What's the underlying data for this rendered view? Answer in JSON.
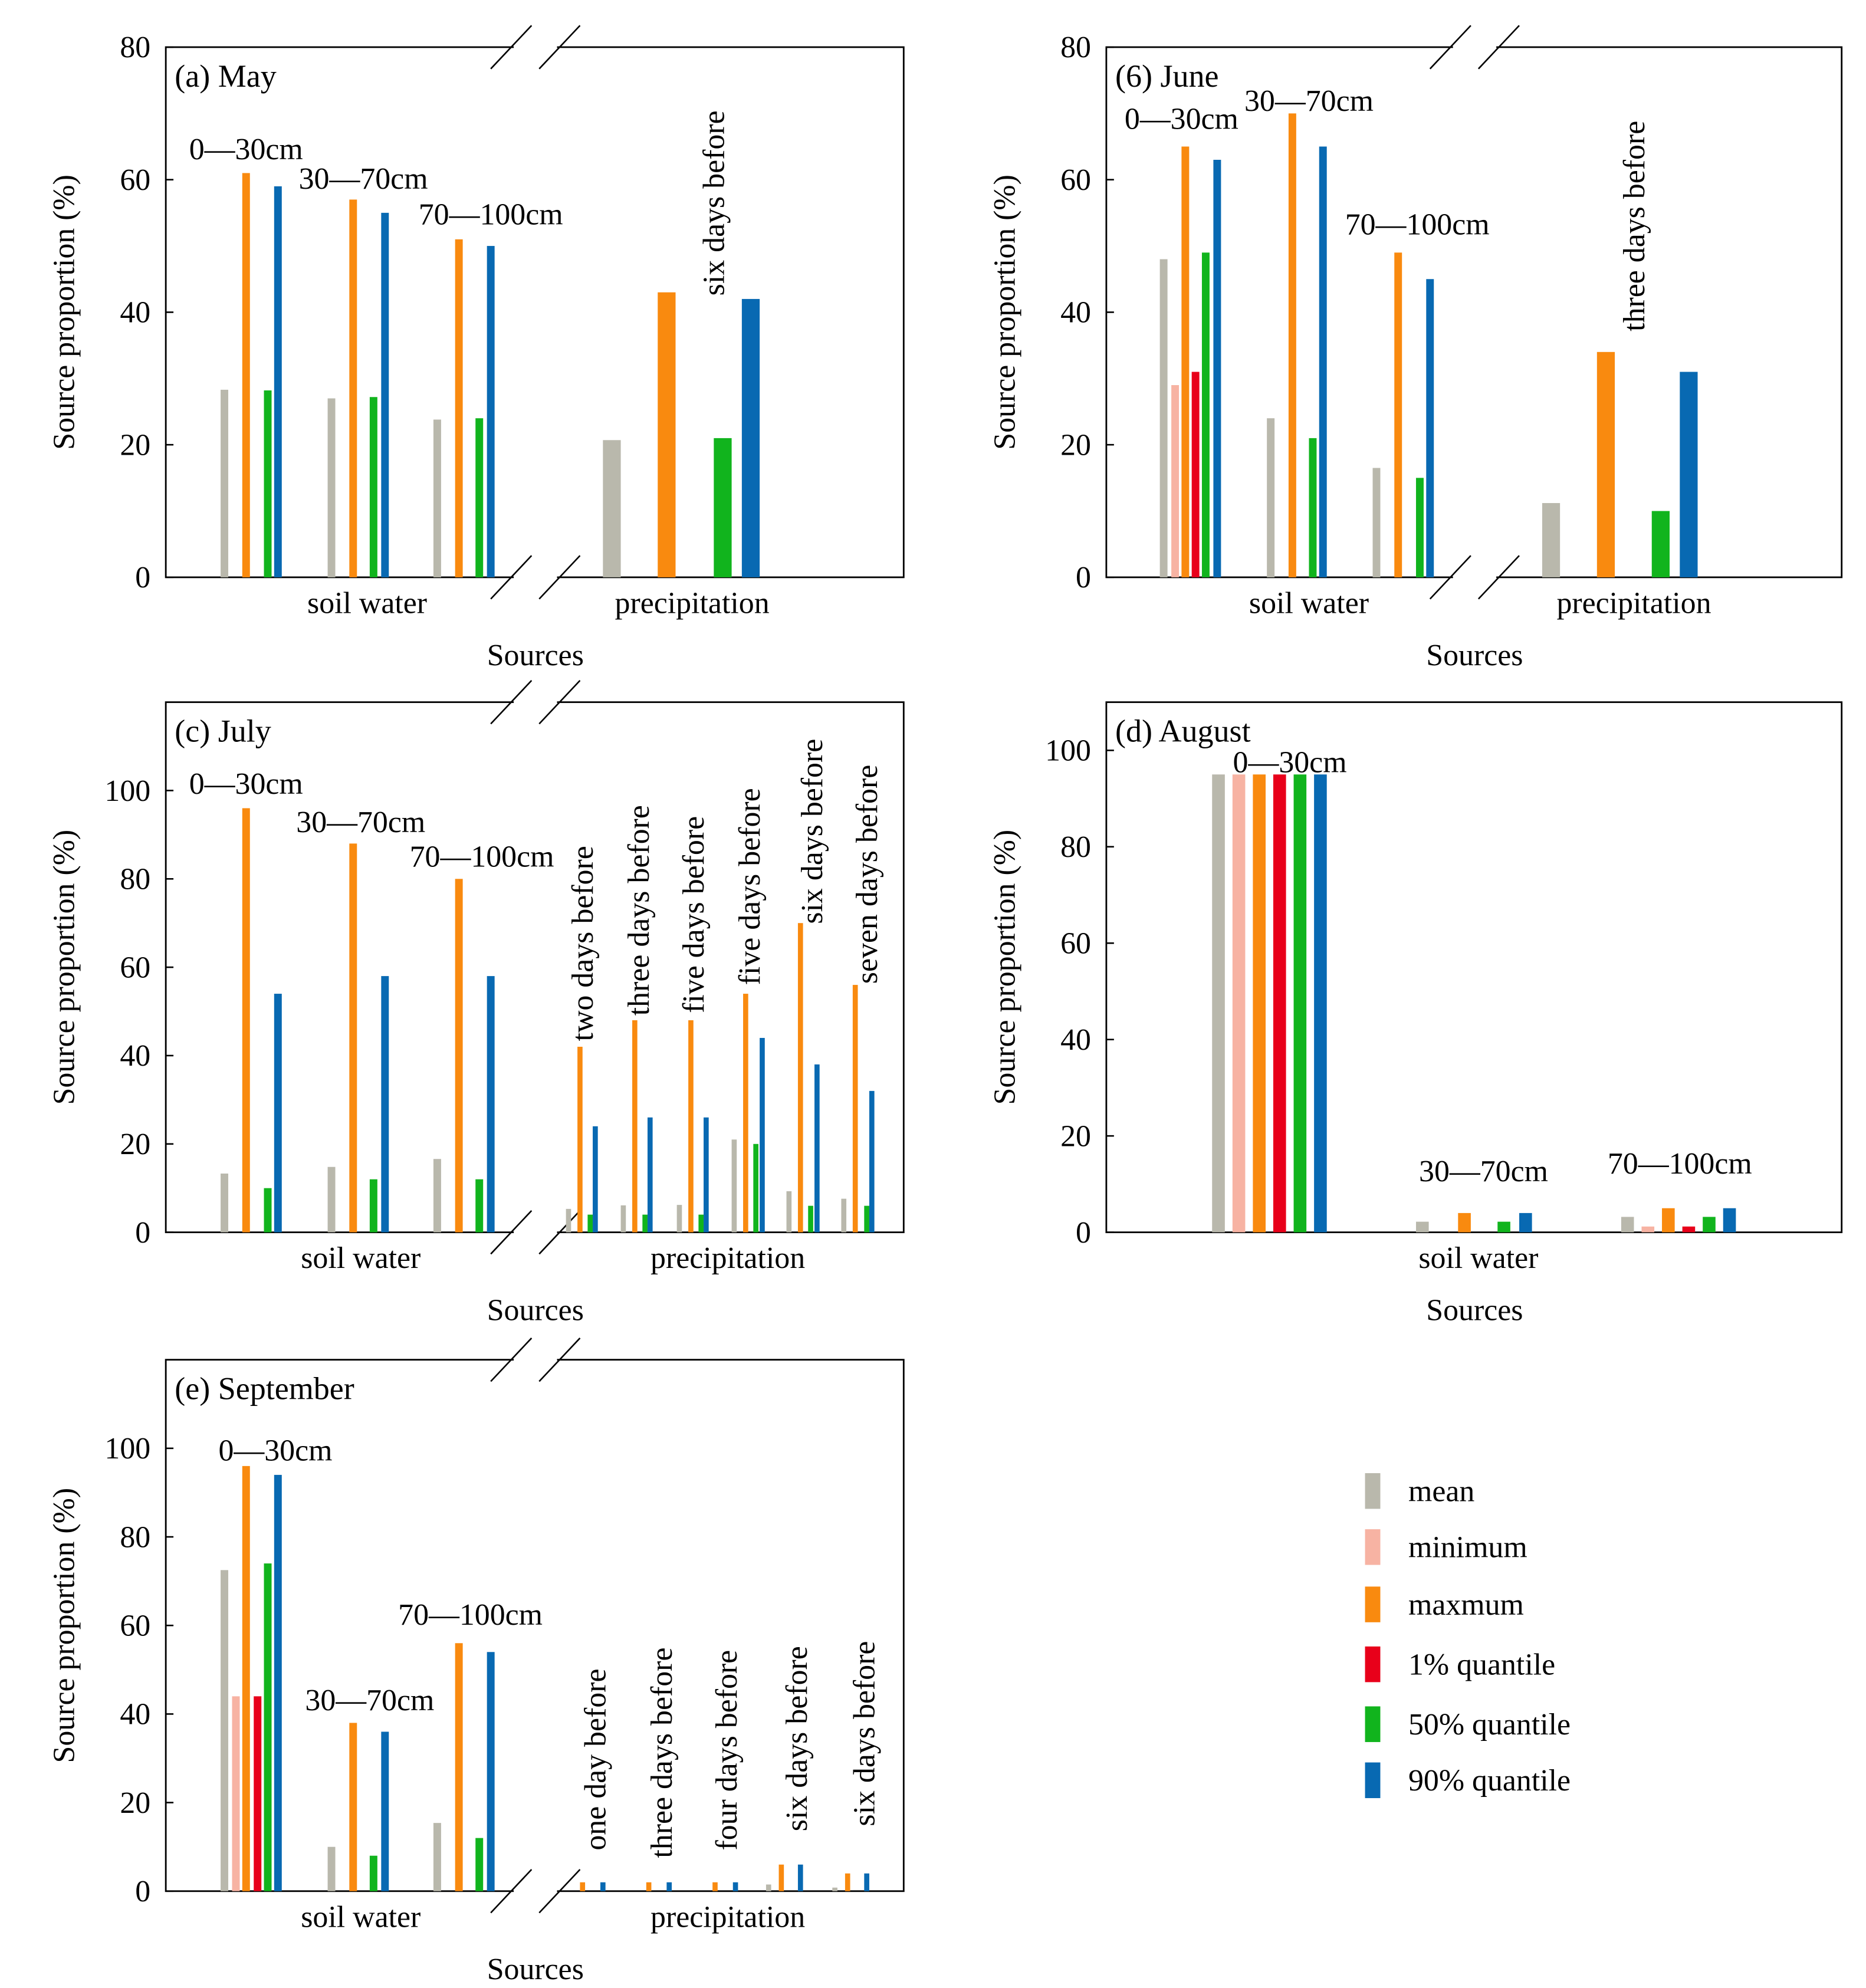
{
  "colors": {
    "mean": "#b9b8ac",
    "minimum": "#f7b3a3",
    "maxmum": "#f98a0f",
    "q1": "#e8001a",
    "q50": "#11b41d",
    "q90": "#0869b2"
  },
  "legend": [
    {
      "key": "mean",
      "label": "mean"
    },
    {
      "key": "minimum",
      "label": "minimum"
    },
    {
      "key": "maxmum",
      "label": "maxmum"
    },
    {
      "key": "q1",
      "label": "1% quantile"
    },
    {
      "key": "q50",
      "label": "50% quantile"
    },
    {
      "key": "q90",
      "label": "90% quantile"
    }
  ],
  "chart_data": [
    {
      "type": "bar",
      "title": "(a) May",
      "ylabel": "Source proportion (%)",
      "xlabel": "Sources",
      "ylim": [
        0,
        80
      ],
      "yticks": [
        0,
        20,
        40,
        60,
        80
      ],
      "categories": [
        "soil water",
        "precipitation"
      ],
      "groups": [
        {
          "label": "0—30cm",
          "values": {
            "mean": 28.3,
            "maxmum": 61,
            "q50": 28.2,
            "q90": 59
          }
        },
        {
          "label": "30—70cm",
          "values": {
            "mean": 27,
            "maxmum": 57,
            "q50": 27.2,
            "q90": 55
          }
        },
        {
          "label": "70—100cm",
          "values": {
            "mean": 23.8,
            "maxmum": 51,
            "q50": 24,
            "q90": 50
          }
        },
        {
          "label": "six days before",
          "values": {
            "mean": 20.7,
            "maxmum": 43,
            "q50": 21,
            "q90": 42
          }
        }
      ]
    },
    {
      "type": "bar",
      "title": "(6) June",
      "ylabel": "Source proportion (%)",
      "xlabel": "Sources",
      "ylim": [
        0,
        80
      ],
      "yticks": [
        0,
        20,
        40,
        60,
        80
      ],
      "categories": [
        "soil water",
        "precipitation"
      ],
      "groups": [
        {
          "label": "0—30cm",
          "values": {
            "mean": 48,
            "minimum": 29,
            "maxmum": 65,
            "q1": 31,
            "q50": 49,
            "q90": 63
          }
        },
        {
          "label": "30—70cm",
          "values": {
            "mean": 24,
            "maxmum": 70,
            "q50": 21,
            "q90": 65
          }
        },
        {
          "label": "70—100cm",
          "values": {
            "mean": 16.5,
            "maxmum": 49,
            "q50": 15,
            "q90": 45
          }
        },
        {
          "label": "three days before",
          "values": {
            "mean": 11.2,
            "maxmum": 34,
            "q50": 10,
            "q90": 31
          }
        }
      ]
    },
    {
      "type": "bar",
      "title": "(c) July",
      "ylabel": "Source proportion (%)",
      "xlabel": "Sources",
      "ylim": [
        0,
        120
      ],
      "yticks": [
        0,
        20,
        40,
        60,
        80,
        100
      ],
      "categories": [
        "soil water",
        "precipitation"
      ],
      "groups": [
        {
          "label": "0—30cm",
          "values": {
            "mean": 13.3,
            "maxmum": 96,
            "q50": 10,
            "q90": 54
          }
        },
        {
          "label": "30—70cm",
          "values": {
            "mean": 14.8,
            "maxmum": 88,
            "q50": 12,
            "q90": 58
          }
        },
        {
          "label": "70—100cm",
          "values": {
            "mean": 16.6,
            "maxmum": 80,
            "q50": 12,
            "q90": 58
          }
        },
        {
          "label": "two days before",
          "values": {
            "mean": 5.3,
            "maxmum": 42,
            "q50": 4,
            "q90": 24
          }
        },
        {
          "label": "three days before",
          "values": {
            "mean": 6.1,
            "maxmum": 48,
            "q50": 4,
            "q90": 26
          }
        },
        {
          "label": "five days before",
          "values": {
            "mean": 6.2,
            "maxmum": 48,
            "q50": 4,
            "q90": 26
          }
        },
        {
          "label": "five days before",
          "values": {
            "mean": 21,
            "maxmum": 54,
            "q50": 20,
            "q90": 44
          }
        },
        {
          "label": "six days before",
          "values": {
            "mean": 9.3,
            "maxmum": 70,
            "q50": 6,
            "q90": 38
          }
        },
        {
          "label": "seven days before",
          "values": {
            "mean": 7.6,
            "maxmum": 56,
            "q50": 6,
            "q90": 32
          }
        }
      ]
    },
    {
      "type": "bar",
      "title": "(d) August",
      "ylabel": "Source proportion (%)",
      "xlabel": "Sources",
      "ylim": [
        0,
        110
      ],
      "yticks": [
        0,
        20,
        40,
        60,
        80,
        100
      ],
      "categories": [
        "soil water"
      ],
      "groups": [
        {
          "label": "0—30cm",
          "values": {
            "mean": 95,
            "minimum": 95,
            "maxmum": 95,
            "q1": 95,
            "q50": 95,
            "q90": 95
          }
        },
        {
          "label": "30—70cm",
          "values": {
            "mean": 2.2,
            "maxmum": 4,
            "q50": 2.2,
            "q90": 4
          }
        },
        {
          "label": "70—100cm",
          "values": {
            "mean": 3.2,
            "minimum": 1.2,
            "maxmum": 5,
            "q1": 1.2,
            "q50": 3.2,
            "q90": 5
          }
        }
      ]
    },
    {
      "type": "bar",
      "title": "(e) September",
      "ylabel": "Source proportion (%)",
      "xlabel": "Sources",
      "ylim": [
        0,
        120
      ],
      "yticks": [
        0,
        20,
        40,
        60,
        80,
        100
      ],
      "categories": [
        "soil water",
        "precipitation"
      ],
      "groups": [
        {
          "label": "0—30cm",
          "values": {
            "mean": 72.5,
            "minimum": 44,
            "maxmum": 96,
            "q1": 44,
            "q50": 74,
            "q90": 94
          }
        },
        {
          "label": "30—70cm",
          "values": {
            "mean": 10,
            "maxmum": 38,
            "q50": 8,
            "q90": 36
          }
        },
        {
          "label": "70—100cm",
          "values": {
            "mean": 15.4,
            "maxmum": 56,
            "q50": 12,
            "q90": 54
          }
        },
        {
          "label": "one day before",
          "values": {
            "maxmum": 2,
            "q90": 2
          }
        },
        {
          "label": "three days before",
          "values": {
            "maxmum": 2,
            "q90": 2
          }
        },
        {
          "label": "four days before",
          "values": {
            "maxmum": 2,
            "q90": 2
          }
        },
        {
          "label": "six days before",
          "values": {
            "mean": 1.5,
            "maxmum": 6,
            "q90": 6
          }
        },
        {
          "label": "six days before",
          "values": {
            "mean": 0.8,
            "maxmum": 4,
            "q90": 4
          }
        }
      ]
    }
  ]
}
